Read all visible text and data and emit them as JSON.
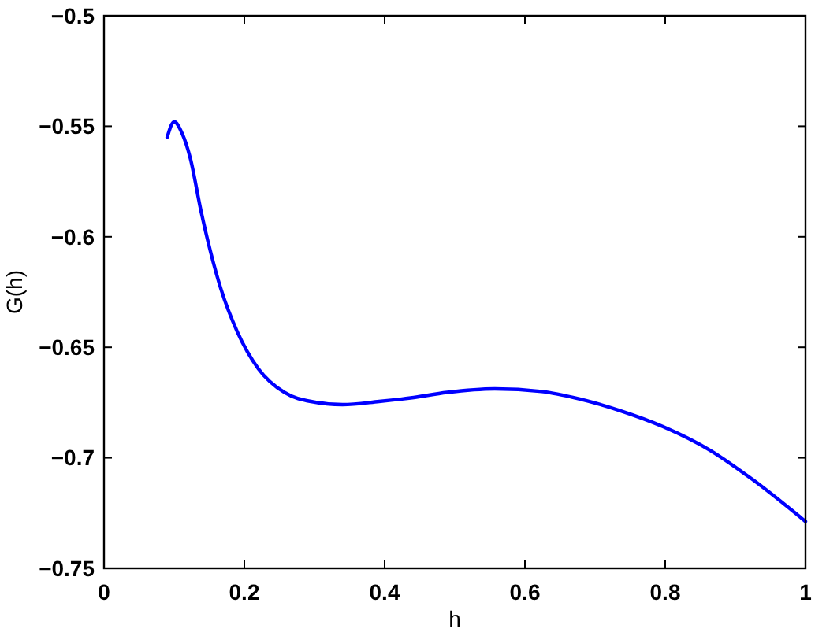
{
  "chart_data": {
    "type": "line",
    "xlabel": "h",
    "ylabel": "G(h)",
    "xlim": [
      0,
      1
    ],
    "ylim": [
      -0.75,
      -0.5
    ],
    "xticks": [
      0,
      0.2,
      0.4,
      0.6,
      0.8,
      1
    ],
    "yticks": [
      -0.75,
      -0.7,
      -0.65,
      -0.6,
      -0.55,
      -0.5
    ],
    "series": [
      {
        "color": "#0000ff",
        "line_style": "solid",
        "x": [
          0.09,
          0.1,
          0.111,
          0.123,
          0.138,
          0.152,
          0.167,
          0.19,
          0.22,
          0.257,
          0.295,
          0.34,
          0.392,
          0.437,
          0.489,
          0.557,
          0.624,
          0.677,
          0.737,
          0.797,
          0.864,
          0.924,
          1.0
        ],
        "values": [
          -0.555,
          -0.548,
          -0.553,
          -0.5645,
          -0.588,
          -0.607,
          -0.624,
          -0.643,
          -0.6597,
          -0.6704,
          -0.6745,
          -0.6759,
          -0.6745,
          -0.6729,
          -0.6704,
          -0.6688,
          -0.67,
          -0.6733,
          -0.6788,
          -0.6859,
          -0.6966,
          -0.7097,
          -0.7288
        ]
      }
    ]
  }
}
